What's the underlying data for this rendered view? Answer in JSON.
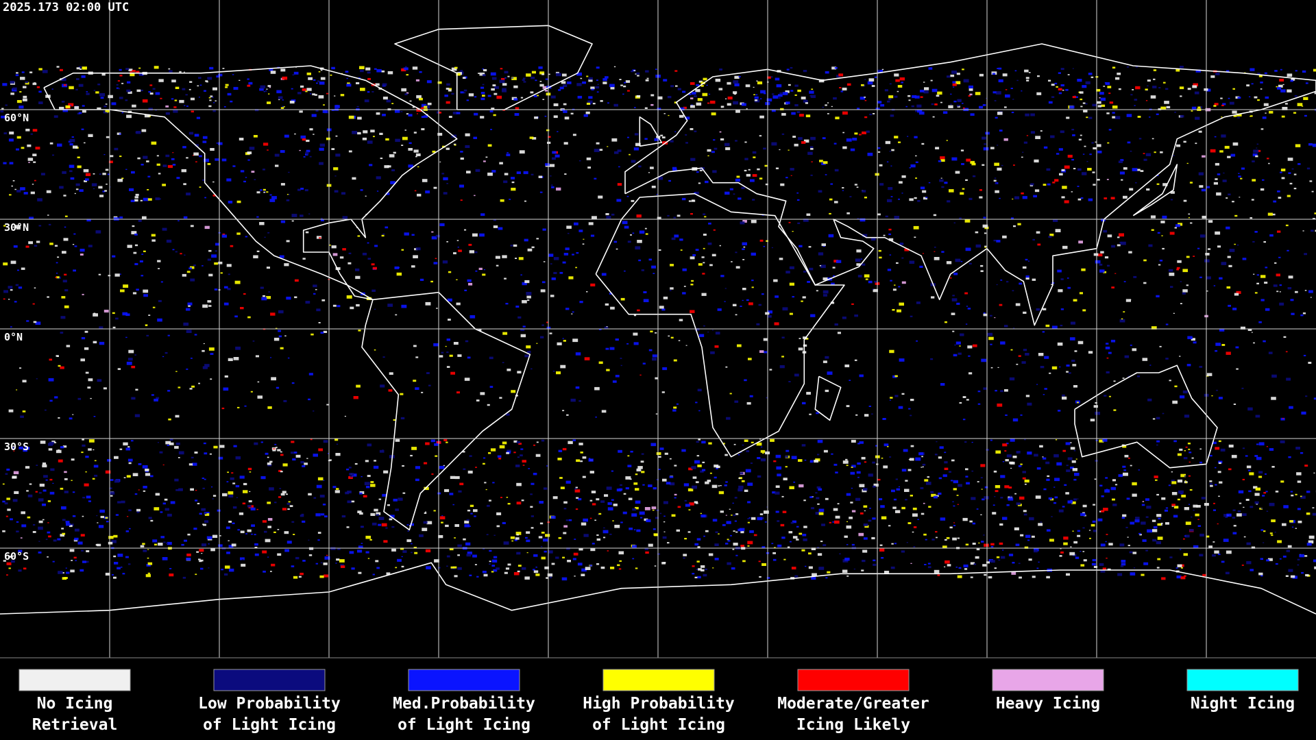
{
  "header": {
    "timestamp": "2025.173 02:00 UTC"
  },
  "map": {
    "latitude_labels": [
      "60°N",
      "30°N",
      "0°N",
      "30°S",
      "60°S"
    ]
  },
  "legend": {
    "items": [
      {
        "lines": [
          "No Icing",
          "Retrieval"
        ],
        "color": "#f0f0f0"
      },
      {
        "lines": [
          "Low Probability",
          "of Light Icing"
        ],
        "color": "#0b0b7e"
      },
      {
        "lines": [
          "Med.Probability",
          "of Light Icing"
        ],
        "color": "#0a14ff"
      },
      {
        "lines": [
          "High Probability",
          "of Light Icing"
        ],
        "color": "#ffff00"
      },
      {
        "lines": [
          "Moderate/Greater",
          "Icing Likely"
        ],
        "color": "#ff0000"
      },
      {
        "lines": [
          "Heavy Icing"
        ],
        "color": "#e8a6e8"
      },
      {
        "lines": [
          "Night Icing"
        ],
        "color": "#00ffff"
      }
    ]
  }
}
